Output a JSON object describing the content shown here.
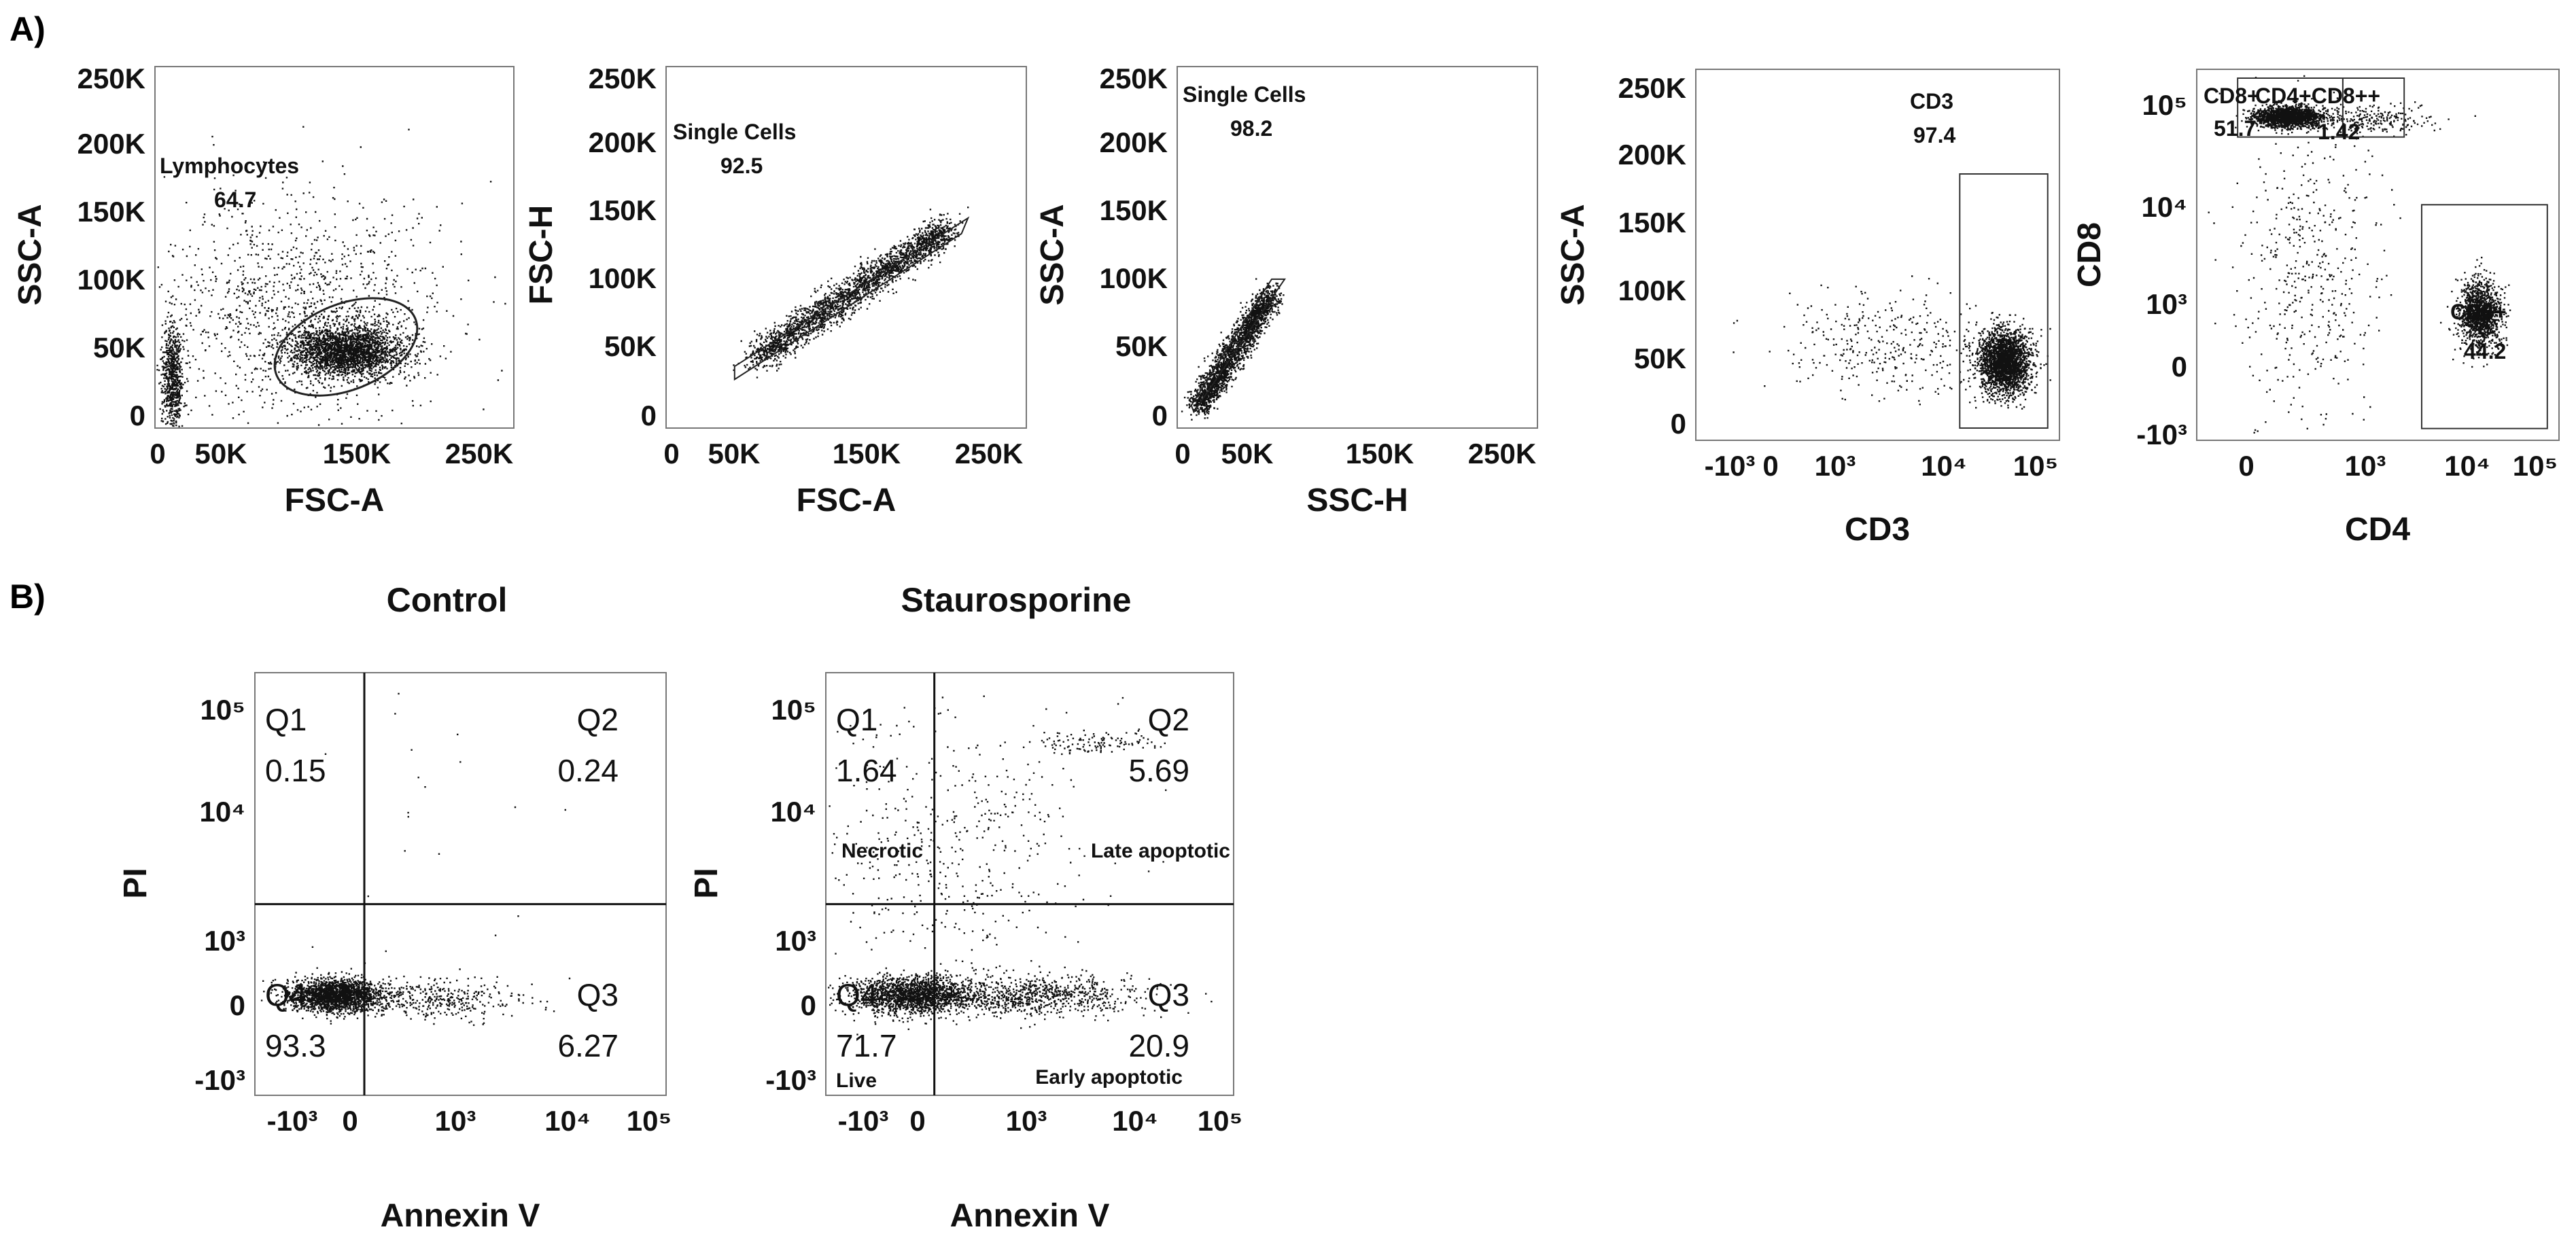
{
  "figure": {
    "panel_labels": [
      "A)",
      "B)"
    ]
  },
  "chart_data": [
    {
      "type": "scatter",
      "panel": "A",
      "xlabel": "FSC-A",
      "ylabel": "SSC-A",
      "x_ticks": [
        "0",
        "50K",
        "150K",
        "250K"
      ],
      "y_ticks": [
        "0",
        "50K",
        "100K",
        "150K",
        "200K",
        "250K"
      ],
      "xlim": [
        0,
        262144
      ],
      "ylim": [
        0,
        262144
      ],
      "clusters": [
        {
          "x": 140000,
          "y": 50000,
          "sx": 22000,
          "sy": 10000,
          "n": 2400
        },
        {
          "x": 5000,
          "y": 30000,
          "sx": 4000,
          "sy": 20000,
          "n": 700
        },
        {
          "x": 100000,
          "y": 85000,
          "sx": 60000,
          "sy": 45000,
          "n": 1200
        }
      ],
      "gates": [
        {
          "shape": "ellipse",
          "name": "Lymphocytes",
          "value": "64.7",
          "cx": 140000,
          "cy": 53000,
          "rx": 58000,
          "ry": 33000,
          "angle": 22
        }
      ]
    },
    {
      "type": "scatter",
      "panel": "A",
      "xlabel": "FSC-A",
      "ylabel": "FSC-H",
      "x_ticks": [
        "0",
        "50K",
        "150K",
        "250K"
      ],
      "y_ticks": [
        "0",
        "50K",
        "100K",
        "150K",
        "200K",
        "250K"
      ],
      "xlim": [
        0,
        262144
      ],
      "ylim": [
        0,
        262144
      ],
      "clusters": [
        {
          "diag": true,
          "x0": 60000,
          "y0": 45000,
          "x1": 210000,
          "y1": 145000,
          "spread": 6000,
          "n": 2400
        }
      ],
      "gates": [
        {
          "shape": "polygon",
          "name": "Single Cells",
          "value": "92.5",
          "points": [
            [
              45000,
              38000
            ],
            [
              225000,
              152000
            ],
            [
              220000,
              140000
            ],
            [
              45000,
              28000
            ]
          ]
        }
      ]
    },
    {
      "type": "scatter",
      "panel": "A",
      "xlabel": "SSC-H",
      "ylabel": "SSC-A",
      "x_ticks": [
        "0",
        "50K",
        "150K",
        "250K"
      ],
      "y_ticks": [
        "0",
        "50K",
        "100K",
        "150K",
        "200K",
        "250K"
      ],
      "xlim": [
        0,
        262144
      ],
      "ylim": [
        0,
        262144
      ],
      "clusters": [
        {
          "diag": true,
          "x0": 8000,
          "y0": 8000,
          "x1": 65000,
          "y1": 95000,
          "spread": 5000,
          "n": 2200
        }
      ],
      "gates": [
        {
          "shape": "polygon",
          "name": "Single Cells",
          "value": "98.2",
          "points": [
            [
              5000,
              3000
            ],
            [
              75000,
              105000
            ],
            [
              65000,
              105000
            ],
            [
              3000,
              8000
            ]
          ]
        }
      ]
    },
    {
      "type": "scatter",
      "panel": "A",
      "xlabel": "CD3",
      "ylabel": "SSC-A",
      "x_ticks": [
        "-10³",
        "0",
        "10³",
        "10⁴",
        "10⁵"
      ],
      "y_ticks": [
        "0",
        "50K",
        "100K",
        "150K",
        "200K",
        "250K"
      ],
      "xlim": [
        -1500,
        262144
      ],
      "ylim": [
        0,
        262144
      ],
      "clusters": [
        {
          "x": 4.25,
          "y": 50000,
          "sx": 0.22,
          "sy": 12000,
          "n": 2400
        },
        {
          "x": 2.3,
          "y": 62000,
          "sx": 0.9,
          "sy": 20000,
          "n": 350
        }
      ],
      "gates": [
        {
          "shape": "rect",
          "name": "CD3",
          "value": "97.4",
          "x0": 3.5,
          "x1": 5.0,
          "y0": 0,
          "y1": 190000
        }
      ]
    },
    {
      "type": "scatter",
      "panel": "A",
      "xlabel": "CD4",
      "ylabel": "CD8",
      "x_ticks": [
        "0",
        "10³",
        "10⁴",
        "10⁵"
      ],
      "y_ticks": [
        "-10³",
        "0",
        "10³",
        "10⁴",
        "10⁵"
      ],
      "xlim": [
        -1500,
        262144
      ],
      "ylim": [
        -1500,
        262144
      ],
      "clusters": [
        {
          "x": 0.55,
          "y": 4.3,
          "sx": 0.28,
          "sy": 0.09,
          "n": 1800
        },
        {
          "x": 3.85,
          "y": 0.95,
          "sx": 0.18,
          "sy": 0.28,
          "n": 1400
        },
        {
          "x": 0.9,
          "y": 1.7,
          "sx": 0.6,
          "sy": 1.2,
          "n": 450
        },
        {
          "x": 2.0,
          "y": 4.25,
          "sx": 0.55,
          "sy": 0.12,
          "n": 250
        }
      ],
      "gates": [
        {
          "shape": "rect",
          "name": "CD8+",
          "value": "51.7",
          "x0": -0.3,
          "x1": 1.5,
          "y0": 3.95,
          "y1": 4.95
        },
        {
          "shape": "rect",
          "name": "CD4+CD8++",
          "value": "1.42",
          "x0": 1.5,
          "x1": 2.55,
          "y0": 3.95,
          "y1": 4.95
        },
        {
          "shape": "rect",
          "name": "CD4+",
          "value": "44.2",
          "x0": 2.85,
          "x1": 5.0,
          "y0": -1.0,
          "y1": 2.8
        }
      ]
    },
    {
      "type": "scatter",
      "panel": "B",
      "title": "Control",
      "xlabel": "Annexin V",
      "ylabel": "PI",
      "x_ticks": [
        "-10³",
        "0",
        "10³",
        "10⁴",
        "10⁵"
      ],
      "y_ticks": [
        "-10³",
        "0",
        "10³",
        "10⁴",
        "10⁵"
      ],
      "xlim": [
        -1500,
        262144
      ],
      "ylim": [
        -1500,
        262144
      ],
      "clusters": [
        {
          "x": 0.2,
          "y": 0.3,
          "sx": 0.35,
          "sy": 0.12,
          "n": 2000
        },
        {
          "x": 1.6,
          "y": 0.25,
          "sx": 0.7,
          "sy": 0.15,
          "n": 400
        },
        {
          "x": 1.5,
          "y": 2.5,
          "sx": 1.6,
          "sy": 1.3,
          "n": 25
        }
      ],
      "quadrants": {
        "x_split": 0.65,
        "y_split": 1.65
      },
      "quadrant_labels": [
        {
          "name": "Q1",
          "value": "0.15",
          "pos": "top-left"
        },
        {
          "name": "Q2",
          "value": "0.24",
          "pos": "top-right"
        },
        {
          "name": "Q4",
          "value": "93.3",
          "pos": "bottom-left"
        },
        {
          "name": "Q3",
          "value": "6.27",
          "pos": "bottom-right"
        }
      ]
    },
    {
      "type": "scatter",
      "panel": "B",
      "title": "Staurosporine",
      "xlabel": "Annexin V",
      "ylabel": "PI",
      "x_ticks": [
        "-10³",
        "0",
        "10³",
        "10⁴",
        "10⁵"
      ],
      "y_ticks": [
        "-10³",
        "0",
        "10³",
        "10⁴",
        "10⁵"
      ],
      "xlim": [
        -1500,
        262144
      ],
      "ylim": [
        -1500,
        262144
      ],
      "clusters": [
        {
          "x": 0.3,
          "y": 0.3,
          "sx": 0.45,
          "sy": 0.14,
          "n": 1700
        },
        {
          "x": 2.0,
          "y": 0.3,
          "sx": 0.9,
          "sy": 0.15,
          "n": 900
        },
        {
          "x": 3.05,
          "y": 4.05,
          "sx": 0.5,
          "sy": 0.08,
          "n": 120
        },
        {
          "x": 0.9,
          "y": 2.6,
          "sx": 1.0,
          "sy": 1.0,
          "n": 450
        }
      ],
      "quadrants": {
        "x_split": 0.65,
        "y_split": 1.65
      },
      "quadrant_labels": [
        {
          "name": "Q1",
          "value": "1.64",
          "pos": "top-left"
        },
        {
          "name": "Q2",
          "value": "5.69",
          "pos": "top-right"
        },
        {
          "name": "Q4",
          "value": "71.7",
          "pos": "bottom-left"
        },
        {
          "name": "Q3",
          "value": "20.9",
          "pos": "bottom-right"
        }
      ],
      "annotations": [
        {
          "text": "Necrotic",
          "pos": "upper-left"
        },
        {
          "text": "Late apoptotic",
          "pos": "upper-right"
        },
        {
          "text": "Live",
          "pos": "lower-left"
        },
        {
          "text": "Early apoptotic",
          "pos": "lower-right"
        }
      ]
    }
  ]
}
